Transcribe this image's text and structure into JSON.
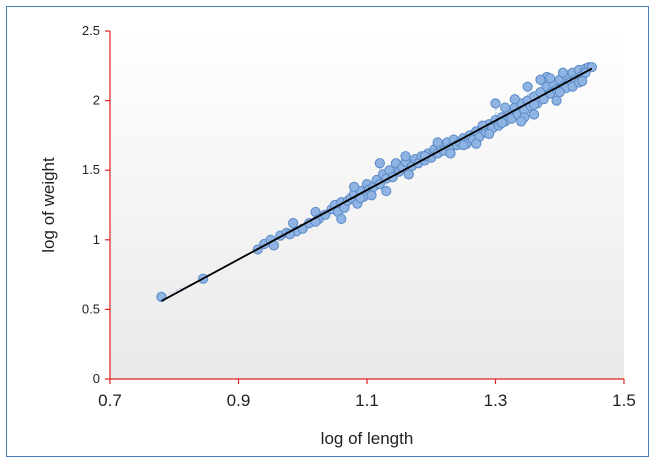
{
  "chart_data": {
    "type": "scatter",
    "title": "",
    "xlabel": "log of length",
    "ylabel": "log of weight",
    "xlim": [
      0.7,
      1.5
    ],
    "ylim": [
      0,
      2.5
    ],
    "x_ticks": [
      "0.7",
      "0.9",
      "1.1",
      "1.3",
      "1.5"
    ],
    "y_ticks": [
      "0",
      "0.5",
      "1",
      "1.5",
      "2",
      "2.5"
    ],
    "grid": false,
    "legend": "none",
    "colors": {
      "points": "#8fb4e3",
      "point_edge": "#5a8ac6",
      "fit_line": "#000000",
      "axes": "#e02020",
      "frame": "#4a7ab5"
    },
    "series": [
      {
        "values": [
          [
            0.78,
            0.59
          ],
          [
            0.845,
            0.72
          ],
          [
            0.93,
            0.93
          ],
          [
            0.94,
            0.97
          ],
          [
            0.95,
            1.0
          ],
          [
            0.955,
            0.96
          ],
          [
            0.965,
            1.03
          ],
          [
            0.975,
            1.05
          ],
          [
            0.985,
            1.12
          ],
          [
            0.99,
            1.06
          ],
          [
            1.0,
            1.08
          ],
          [
            1.01,
            1.12
          ],
          [
            1.02,
            1.2
          ],
          [
            1.025,
            1.15
          ],
          [
            1.035,
            1.18
          ],
          [
            1.045,
            1.22
          ],
          [
            1.05,
            1.25
          ],
          [
            1.055,
            1.2
          ],
          [
            1.06,
            1.27
          ],
          [
            1.065,
            1.23
          ],
          [
            1.07,
            1.28
          ],
          [
            1.075,
            1.3
          ],
          [
            1.08,
            1.33
          ],
          [
            1.085,
            1.26
          ],
          [
            1.09,
            1.35
          ],
          [
            1.095,
            1.31
          ],
          [
            1.1,
            1.4
          ],
          [
            1.103,
            1.36
          ],
          [
            1.107,
            1.32
          ],
          [
            1.11,
            1.38
          ],
          [
            1.115,
            1.43
          ],
          [
            1.12,
            1.4
          ],
          [
            1.125,
            1.47
          ],
          [
            1.13,
            1.44
          ],
          [
            1.135,
            1.5
          ],
          [
            1.14,
            1.45
          ],
          [
            1.145,
            1.55
          ],
          [
            1.15,
            1.49
          ],
          [
            1.155,
            1.52
          ],
          [
            1.16,
            1.56
          ],
          [
            1.165,
            1.47
          ],
          [
            1.17,
            1.53
          ],
          [
            1.175,
            1.58
          ],
          [
            1.18,
            1.55
          ],
          [
            1.185,
            1.6
          ],
          [
            1.19,
            1.57
          ],
          [
            1.195,
            1.62
          ],
          [
            1.2,
            1.59
          ],
          [
            1.205,
            1.65
          ],
          [
            1.21,
            1.62
          ],
          [
            1.215,
            1.67
          ],
          [
            1.22,
            1.64
          ],
          [
            1.225,
            1.7
          ],
          [
            1.23,
            1.66
          ],
          [
            1.235,
            1.72
          ],
          [
            1.24,
            1.68
          ],
          [
            1.245,
            1.7
          ],
          [
            1.25,
            1.73
          ],
          [
            1.255,
            1.69
          ],
          [
            1.26,
            1.75
          ],
          [
            1.265,
            1.72
          ],
          [
            1.27,
            1.78
          ],
          [
            1.275,
            1.74
          ],
          [
            1.28,
            1.8
          ],
          [
            1.285,
            1.77
          ],
          [
            1.29,
            1.83
          ],
          [
            1.295,
            1.8
          ],
          [
            1.3,
            1.86
          ],
          [
            1.305,
            1.82
          ],
          [
            1.31,
            1.88
          ],
          [
            1.315,
            1.85
          ],
          [
            1.32,
            1.92
          ],
          [
            1.325,
            1.87
          ],
          [
            1.33,
            1.95
          ],
          [
            1.335,
            1.9
          ],
          [
            1.34,
            1.98
          ],
          [
            1.345,
            1.93
          ],
          [
            1.35,
            2.0
          ],
          [
            1.355,
            1.96
          ],
          [
            1.36,
            2.03
          ],
          [
            1.365,
            1.98
          ],
          [
            1.37,
            2.06
          ],
          [
            1.375,
            2.01
          ],
          [
            1.38,
            2.1
          ],
          [
            1.385,
            2.05
          ],
          [
            1.39,
            2.12
          ],
          [
            1.395,
            2.08
          ],
          [
            1.4,
            2.15
          ],
          [
            1.405,
            2.1
          ],
          [
            1.41,
            2.18
          ],
          [
            1.415,
            2.13
          ],
          [
            1.42,
            2.2
          ],
          [
            1.425,
            2.15
          ],
          [
            1.43,
            2.22
          ],
          [
            1.435,
            2.18
          ],
          [
            1.44,
            2.23
          ],
          [
            1.445,
            2.24
          ],
          [
            1.45,
            2.24
          ],
          [
            1.33,
            2.01
          ],
          [
            1.345,
            1.88
          ],
          [
            1.36,
            1.9
          ],
          [
            1.38,
            2.17
          ],
          [
            1.395,
            2.0
          ],
          [
            1.41,
            2.09
          ],
          [
            1.42,
            2.1
          ],
          [
            1.43,
            2.13
          ],
          [
            1.3,
            1.98
          ],
          [
            1.315,
            1.95
          ],
          [
            1.27,
            1.69
          ],
          [
            1.25,
            1.68
          ],
          [
            1.19,
            1.6
          ],
          [
            1.16,
            1.6
          ],
          [
            1.13,
            1.35
          ],
          [
            1.12,
            1.55
          ],
          [
            1.09,
            1.3
          ],
          [
            1.08,
            1.38
          ],
          [
            1.06,
            1.15
          ],
          [
            1.02,
            1.13
          ],
          [
            0.98,
            1.04
          ],
          [
            1.405,
            2.2
          ],
          [
            1.37,
            2.15
          ],
          [
            1.35,
            2.1
          ],
          [
            1.44,
            2.2
          ],
          [
            1.435,
            2.14
          ],
          [
            1.4,
            2.06
          ],
          [
            1.385,
            2.16
          ],
          [
            1.21,
            1.7
          ],
          [
            1.23,
            1.62
          ],
          [
            1.28,
            1.82
          ],
          [
            1.29,
            1.76
          ],
          [
            1.31,
            1.84
          ],
          [
            1.34,
            1.85
          ],
          [
            1.36,
            1.97
          ]
        ]
      }
    ],
    "fit_line": {
      "x": [
        0.78,
        1.45
      ],
      "y": [
        0.56,
        2.23
      ]
    }
  }
}
